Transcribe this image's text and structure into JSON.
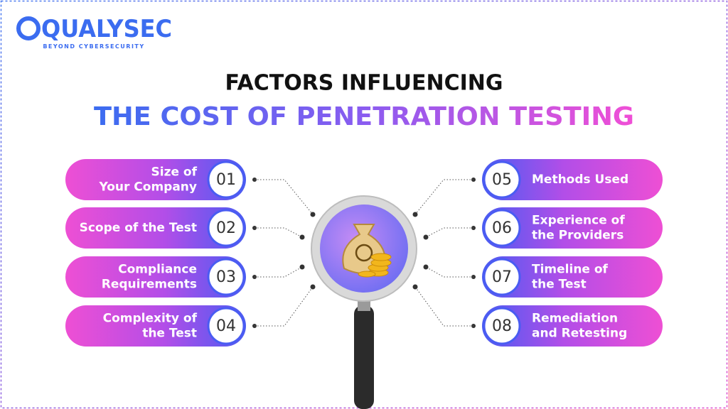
{
  "logo": {
    "name": "QUALYSEC",
    "tagline": "BEYOND CYBERSECURITY"
  },
  "title": {
    "line1": "FACTORS INFLUENCING",
    "line2": "THE COST OF PENETRATION TESTING"
  },
  "items": [
    {
      "number": "01",
      "lines": [
        "Size of",
        "Your Company"
      ]
    },
    {
      "number": "02",
      "lines": [
        "Scope of the Test"
      ]
    },
    {
      "number": "03",
      "lines": [
        "Compliance",
        "Requirements"
      ]
    },
    {
      "number": "04",
      "lines": [
        "Complexity of",
        "the Test"
      ]
    },
    {
      "number": "05",
      "lines": [
        "Methods Used"
      ]
    },
    {
      "number": "06",
      "lines": [
        "Experience of",
        "the Providers"
      ]
    },
    {
      "number": "07",
      "lines": [
        "Timeline of",
        "the Test"
      ]
    },
    {
      "number": "08",
      "lines": [
        "Remediation",
        "and Retesting"
      ]
    }
  ]
}
